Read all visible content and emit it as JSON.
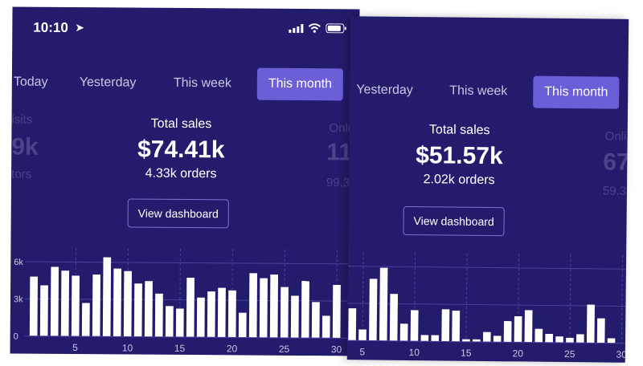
{
  "status_bar": {
    "time": "10:10"
  },
  "panels": [
    {
      "tabs": [
        "Today",
        "Yesterday",
        "This week",
        "This month"
      ],
      "active_tab": 3,
      "left_metric": {
        "label": "isits",
        "value": "9k",
        "sub": "tors"
      },
      "center_metric": {
        "label": "Total sales",
        "value": "$74.41k",
        "sub": "4.33k orders"
      },
      "right_metric": {
        "label": "Onli",
        "value": "11",
        "sub": "99.3"
      },
      "view_dashboard": "View dashboard"
    },
    {
      "tabs": [
        "Yesterday",
        "This week",
        "This month"
      ],
      "active_tab": 2,
      "center_metric": {
        "label": "Total sales",
        "value": "$51.57k",
        "sub": "2.02k orders"
      },
      "right_metric": {
        "label": "Onli",
        "value": "67",
        "sub": "59.3"
      },
      "view_dashboard": "View dashboard"
    }
  ],
  "chart_data": [
    {
      "type": "bar",
      "title": "",
      "xlabel": "",
      "ylabel": "",
      "ylim": [
        0,
        7000
      ],
      "y_ticks": [
        "0",
        "3k",
        "6k"
      ],
      "x_ticks": [
        "5",
        "10",
        "15",
        "20",
        "25",
        "30"
      ],
      "x": [
        1,
        2,
        3,
        4,
        5,
        6,
        7,
        8,
        9,
        10,
        11,
        12,
        13,
        14,
        15,
        16,
        17,
        18,
        19,
        20,
        21,
        22,
        23,
        24,
        25,
        26,
        27,
        28,
        29,
        30
      ],
      "values": [
        4800,
        4100,
        5600,
        5300,
        4900,
        2700,
        5000,
        6400,
        5500,
        5300,
        4300,
        4500,
        3500,
        2500,
        2300,
        4800,
        3200,
        3700,
        4000,
        3800,
        2000,
        5200,
        4800,
        5100,
        4100,
        3400,
        4600,
        2900,
        1800,
        4300
      ]
    },
    {
      "type": "bar",
      "title": "",
      "xlabel": "",
      "ylabel": "",
      "ylim": [
        0,
        7000
      ],
      "y_ticks": [],
      "x_ticks": [
        "5",
        "10",
        "15",
        "20",
        "25",
        "30"
      ],
      "x": [
        4,
        5,
        6,
        7,
        8,
        9,
        10,
        11,
        12,
        13,
        14,
        15,
        16,
        17,
        18,
        19,
        20,
        21,
        22,
        23,
        24,
        25,
        26,
        27,
        28,
        29,
        30
      ],
      "values": [
        2600,
        900,
        5000,
        5900,
        3800,
        1400,
        2500,
        500,
        500,
        2600,
        2500,
        200,
        200,
        800,
        500,
        1700,
        2100,
        2600,
        1100,
        700,
        500,
        400,
        700,
        3100,
        2000,
        400,
        0
      ]
    }
  ]
}
